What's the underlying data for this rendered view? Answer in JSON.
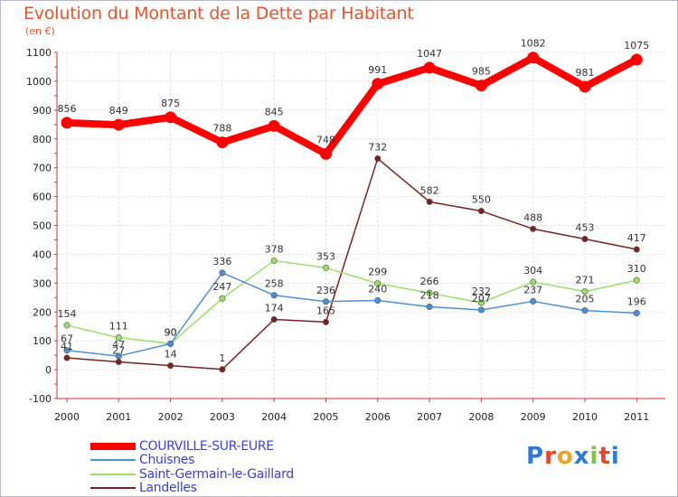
{
  "title": "Evolution du Montant de la Dette par Habitant",
  "unit": "(en €)",
  "logo": {
    "letters": [
      "P",
      "r",
      "o",
      "x",
      "i",
      "t",
      "i"
    ],
    "colors": [
      "#2e7bd6",
      "#e8442a",
      "#e8a52a",
      "#2e7bd6",
      "#7cc43a",
      "#e8442a",
      "#2e7bd6"
    ]
  },
  "chart_data": {
    "type": "line",
    "title": "Evolution du Montant de la Dette par Habitant",
    "ylabel": "(en €)",
    "x": [
      "2000",
      "2001",
      "2002",
      "2003",
      "2004",
      "2005",
      "2006",
      "2007",
      "2008",
      "2009",
      "2010",
      "2011"
    ],
    "ylim": [
      -100,
      1100
    ],
    "yticks": [
      "-100",
      "0",
      "100",
      "200",
      "300",
      "400",
      "500",
      "600",
      "700",
      "800",
      "900",
      "1000",
      "1100"
    ],
    "grid": true,
    "legend": "bottom",
    "series": [
      {
        "name": "COURVILLE-SUR-EURE",
        "color": "#ff0000",
        "values": [
          856,
          849,
          875,
          788,
          845,
          748,
          991,
          1047,
          985,
          1082,
          981,
          1075
        ],
        "labels": [
          "856",
          "849",
          "875",
          "788",
          "845",
          "748",
          "991",
          "1047",
          "985",
          "1082",
          "981",
          "1075"
        ]
      },
      {
        "name": "Chuisnes",
        "color": "#4a90d9",
        "values": [
          67,
          47,
          90,
          336,
          258,
          236,
          240,
          218,
          207,
          237,
          205,
          196
        ],
        "labels": [
          "67",
          "47",
          "90",
          "336",
          "258",
          "236",
          "240",
          "218",
          "207",
          "237",
          "205",
          "196"
        ]
      },
      {
        "name": "Saint-Germain-le-Gaillard",
        "color": "#99e066",
        "values": [
          154,
          111,
          90,
          247,
          378,
          353,
          299,
          266,
          232,
          304,
          271,
          310
        ],
        "labels": [
          "154",
          "111",
          "90",
          "247",
          "378",
          "353",
          "299",
          "266",
          "232",
          "304",
          "271",
          "310"
        ]
      },
      {
        "name": "Landelles",
        "color": "#7a2222",
        "values": [
          41,
          27,
          14,
          1,
          174,
          165,
          732,
          582,
          550,
          488,
          453,
          417
        ],
        "labels": [
          "41",
          "27",
          "14",
          "1",
          "174",
          "165",
          "732",
          "582",
          "550",
          "488",
          "453",
          "417"
        ]
      }
    ]
  }
}
